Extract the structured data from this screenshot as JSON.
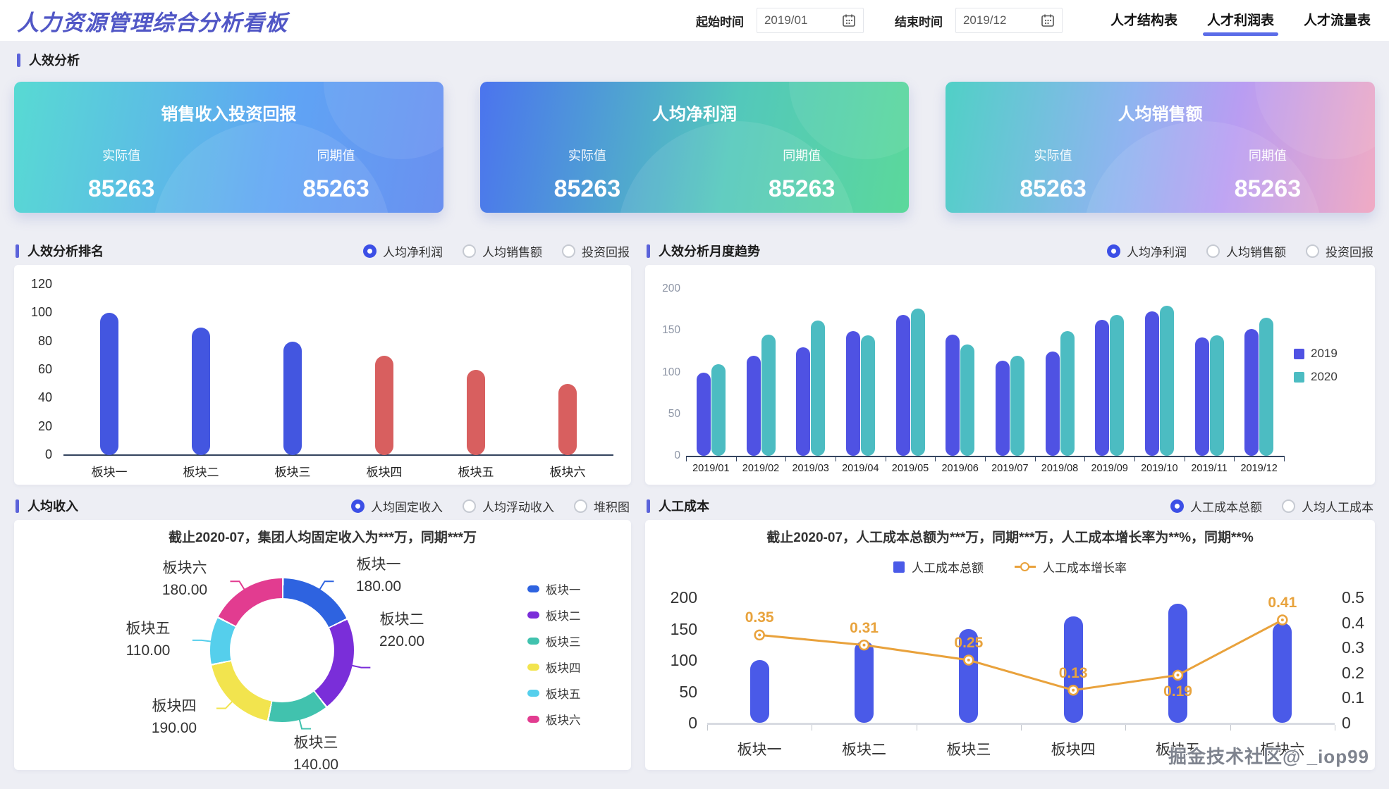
{
  "header": {
    "title": "人力资源管理综合分析看板",
    "start_label": "起始时间",
    "start_value": "2019/01",
    "end_label": "结束时间",
    "end_value": "2019/12",
    "tabs": [
      {
        "label": "人才结构表",
        "active": false
      },
      {
        "label": "人才利润表",
        "active": true
      },
      {
        "label": "人才流量表",
        "active": false
      }
    ]
  },
  "section": {
    "title": "人效分析"
  },
  "cards": [
    {
      "title": "销售收入投资回报",
      "actual_label": "实际值",
      "actual_value": "85263",
      "period_label": "同期值",
      "period_value": "85263"
    },
    {
      "title": "人均净利润",
      "actual_label": "实际值",
      "actual_value": "85263",
      "period_label": "同期值",
      "period_value": "85263"
    },
    {
      "title": "人均销售额",
      "actual_label": "实际值",
      "actual_value": "85263",
      "period_label": "同期值",
      "period_value": "85263"
    }
  ],
  "ranking": {
    "title": "人效分析排名",
    "radios": [
      {
        "label": "人均净利润",
        "selected": true
      },
      {
        "label": "人均销售额",
        "selected": false
      },
      {
        "label": "投资回报",
        "selected": false
      }
    ],
    "chart_data": {
      "type": "bar",
      "categories": [
        "板块一",
        "板块二",
        "板块三",
        "板块四",
        "板块五",
        "板块六"
      ],
      "values": [
        100,
        90,
        80,
        70,
        60,
        50
      ],
      "bar_colors": [
        "#4356e0",
        "#4356e0",
        "#4356e0",
        "#d85f5f",
        "#d85f5f",
        "#d85f5f"
      ],
      "ylim": [
        0,
        120
      ],
      "yticks": [
        0,
        20,
        40,
        60,
        80,
        100,
        120
      ],
      "grid": false
    }
  },
  "monthly": {
    "title": "人效分析月度趋势",
    "radios": [
      {
        "label": "人均净利润",
        "selected": true
      },
      {
        "label": "人均销售额",
        "selected": false
      },
      {
        "label": "投资回报",
        "selected": false
      }
    ],
    "chart_data": {
      "type": "bar",
      "categories": [
        "2019/01",
        "2019/02",
        "2019/03",
        "2019/04",
        "2019/05",
        "2019/06",
        "2019/07",
        "2019/08",
        "2019/09",
        "2019/10",
        "2019/11",
        "2019/12"
      ],
      "series": [
        {
          "name": "2019",
          "color": "#4f52e3",
          "values": [
            100,
            120,
            130,
            149,
            169,
            145,
            114,
            125,
            163,
            173,
            142,
            152
          ]
        },
        {
          "name": "2020",
          "color": "#4cbcc2",
          "values": [
            110,
            145,
            162,
            144,
            176,
            133,
            120,
            149,
            169,
            180,
            144,
            165
          ]
        }
      ],
      "ylim": [
        0,
        200
      ],
      "yticks": [
        0,
        50,
        100,
        150,
        200
      ],
      "legend_position": "right",
      "grid": false
    }
  },
  "income": {
    "title": "人均收入",
    "radios": [
      {
        "label": "人均固定收入",
        "selected": true
      },
      {
        "label": "人均浮动收入",
        "selected": false
      },
      {
        "label": "堆积图",
        "selected": false
      }
    ],
    "chart_data": {
      "type": "pie",
      "title": "截止2020-07，集团人均固定收入为***万，同期***万",
      "slices": [
        {
          "label": "板块一",
          "value": 180,
          "display": "180.00",
          "color": "#2e63e0"
        },
        {
          "label": "板块二",
          "value": 220,
          "display": "220.00",
          "color": "#7a2ed9"
        },
        {
          "label": "板块三",
          "value": 140,
          "display": "140.00",
          "color": "#41c2ae"
        },
        {
          "label": "板块四",
          "value": 190,
          "display": "190.00",
          "color": "#f2e44e"
        },
        {
          "label": "板块五",
          "value": 110,
          "display": "110.00",
          "color": "#55cfec"
        },
        {
          "label": "板块六",
          "value": 180,
          "display": "180.00",
          "color": "#e23c90"
        }
      ],
      "legend_position": "right"
    }
  },
  "cost": {
    "title": "人工成本",
    "radios": [
      {
        "label": "人工成本总额",
        "selected": true
      },
      {
        "label": "人均人工成本",
        "selected": false
      }
    ],
    "chart_data": {
      "type": "combo",
      "title": "截止2020-07，人工成本总额为***万，同期***万，人工成本增长率为**%，同期**%",
      "categories": [
        "板块一",
        "板块二",
        "板块三",
        "板块四",
        "板块五",
        "板块六"
      ],
      "bar_series": {
        "name": "人工成本总额",
        "color": "#4a5ae8",
        "values": [
          100,
          130,
          150,
          170,
          190,
          160
        ]
      },
      "line_series": {
        "name": "人工成本增长率",
        "color": "#e9a23c",
        "values": [
          0.35,
          0.31,
          0.25,
          0.13,
          0.19,
          0.41
        ],
        "labels": [
          "0.35",
          "0.31",
          "0.25",
          "0.13",
          "0.19",
          "0.41"
        ],
        "label_below": [
          false,
          false,
          false,
          false,
          true,
          false
        ]
      },
      "left_ylim": [
        0,
        200
      ],
      "left_yticks": [
        0,
        50,
        100,
        150,
        200
      ],
      "right_ylim": [
        0,
        0.5
      ],
      "right_yticks": [
        "0",
        "0.1",
        "0.2",
        "0.3",
        "0.4",
        "0.5"
      ]
    }
  },
  "watermark": "掘金技术社区@ _iop99"
}
